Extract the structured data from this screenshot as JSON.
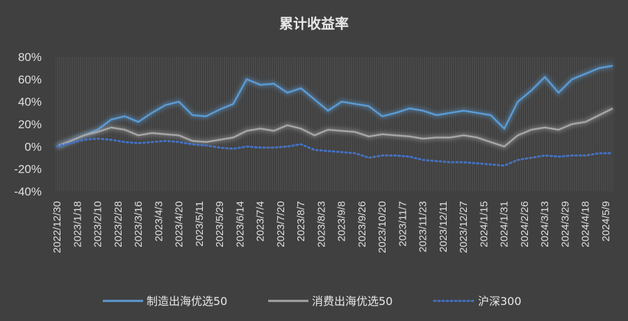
{
  "chart_data": {
    "type": "line",
    "title": "累计收益率",
    "xlabel": "",
    "ylabel": "",
    "ylim": [
      -40,
      80
    ],
    "ytick_labels": [
      "80%",
      "60%",
      "40%",
      "20%",
      "0%",
      "-20%",
      "-40%"
    ],
    "ytick_values": [
      80,
      60,
      40,
      20,
      0,
      -20,
      -40
    ],
    "x_tick_labels": [
      "2022/12/30",
      "2023/1/18",
      "2023/2/10",
      "2023/2/28",
      "2023/3/16",
      "2023/4/3",
      "2023/4/20",
      "2023/5/11",
      "2023/5/29",
      "2023/6/14",
      "2023/7/4",
      "2023/7/20",
      "2023/8/7",
      "2023/8/23",
      "2023/9/8",
      "2023/9/26",
      "2023/10/20",
      "2023/11/7",
      "2023/11/23",
      "2023/12/11",
      "2023/12/27",
      "2024/1/15",
      "2024/1/31",
      "2024/2/26",
      "2024/3/13",
      "2024/3/29",
      "2024/4/18",
      "2024/5/9"
    ],
    "grid": false,
    "legend_position": "bottom",
    "series": [
      {
        "name": "制造出海优选50",
        "color": "#5b9bd5",
        "style": "solid",
        "values": [
          0,
          5,
          10,
          15,
          24,
          27,
          22,
          30,
          37,
          40,
          28,
          27,
          33,
          38,
          60,
          55,
          56,
          48,
          52,
          42,
          32,
          40,
          38,
          36,
          27,
          30,
          34,
          32,
          28,
          30,
          32,
          30,
          28,
          16,
          40,
          50,
          62,
          48,
          60,
          65,
          70,
          72
        ]
      },
      {
        "name": "消费出海优选50",
        "color": "#a6a6a6",
        "style": "solid",
        "values": [
          0,
          5,
          10,
          13,
          17,
          15,
          10,
          12,
          11,
          10,
          5,
          4,
          6,
          8,
          14,
          16,
          14,
          19,
          16,
          10,
          15,
          14,
          13,
          9,
          11,
          10,
          9,
          7,
          8,
          8,
          10,
          8,
          4,
          0,
          10,
          15,
          17,
          15,
          20,
          22,
          28,
          34
        ]
      },
      {
        "name": "沪深300",
        "color": "#4472c4",
        "style": "dotted",
        "values": [
          0,
          3,
          6,
          7,
          6,
          4,
          3,
          4,
          5,
          4,
          2,
          1,
          -1,
          -2,
          0,
          -1,
          -1,
          0,
          2,
          -3,
          -4,
          -5,
          -6,
          -10,
          -8,
          -8,
          -9,
          -12,
          -13,
          -14,
          -14,
          -15,
          -16,
          -17,
          -12,
          -10,
          -8,
          -9,
          -8,
          -8,
          -6,
          -6
        ]
      }
    ]
  }
}
